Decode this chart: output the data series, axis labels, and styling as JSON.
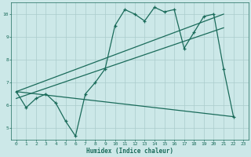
{
  "xlabel": "Humidex (Indice chaleur)",
  "bg_color": "#cce8e8",
  "grid_color": "#aacccc",
  "line_color": "#1a6b5a",
  "xlim": [
    -0.5,
    23.5
  ],
  "ylim": [
    4.5,
    10.5
  ],
  "xticks": [
    0,
    1,
    2,
    3,
    4,
    5,
    6,
    7,
    8,
    9,
    10,
    11,
    12,
    13,
    14,
    15,
    16,
    17,
    18,
    19,
    20,
    21,
    22,
    23
  ],
  "yticks": [
    5,
    6,
    7,
    8,
    9,
    10
  ],
  "curve_x": [
    0,
    1,
    2,
    3,
    4,
    5,
    6,
    7,
    8,
    9,
    10,
    11,
    12,
    13,
    14,
    15,
    16,
    17,
    18,
    19,
    20,
    21,
    22
  ],
  "curve_y": [
    6.6,
    5.9,
    6.3,
    6.5,
    6.1,
    5.3,
    4.65,
    6.5,
    7.0,
    7.6,
    9.5,
    10.2,
    10.0,
    9.7,
    10.3,
    10.1,
    10.2,
    8.5,
    9.2,
    9.9,
    10.0,
    7.6,
    5.5
  ],
  "line1_x": [
    0,
    21
  ],
  "line1_y": [
    6.6,
    10.0
  ],
  "line2_x": [
    0,
    21
  ],
  "line2_y": [
    6.3,
    9.4
  ],
  "line3_x": [
    0,
    22
  ],
  "line3_y": [
    6.6,
    5.5
  ]
}
